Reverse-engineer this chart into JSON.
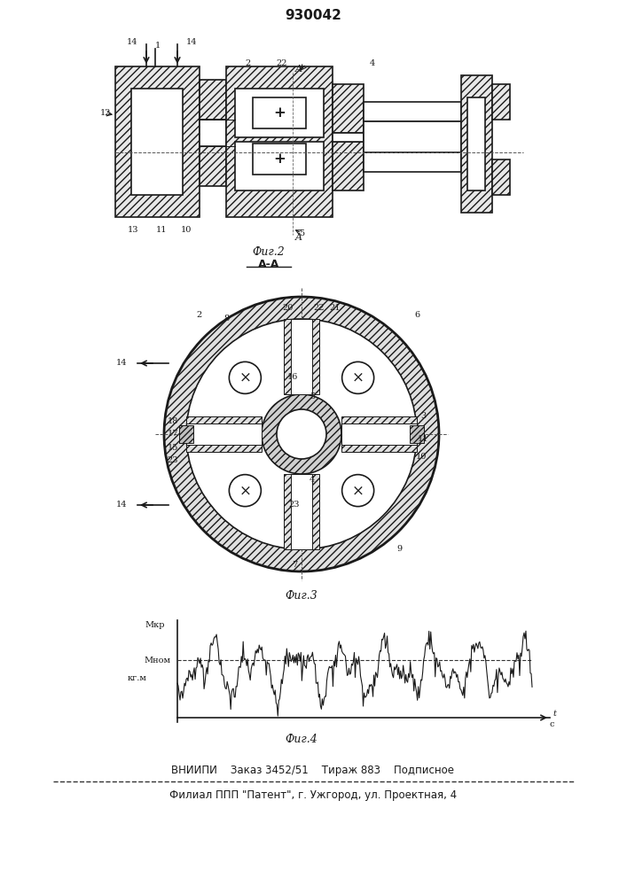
{
  "patent_number": "930042",
  "fig2_label": "Фиг.2",
  "fig3_label": "Фиг.3",
  "fig4_label": "Фиг.4",
  "section_label": "А-А",
  "footer_line1": "ВНИИПИ    Заказ 3452/51    Тираж 883    Подписное",
  "footer_line2": "Филиал ППП \"Патент\", г. Ужгород, ул. Проектная, 4",
  "ylabel_fig4": "кг.м",
  "mnom_label": "Мном",
  "mkr_label": "Мкр",
  "t_label": "t",
  "c_label": "с",
  "bg_color": "#f5f5f0",
  "line_color": "#1a1a1a",
  "hatch_color": "#333333"
}
